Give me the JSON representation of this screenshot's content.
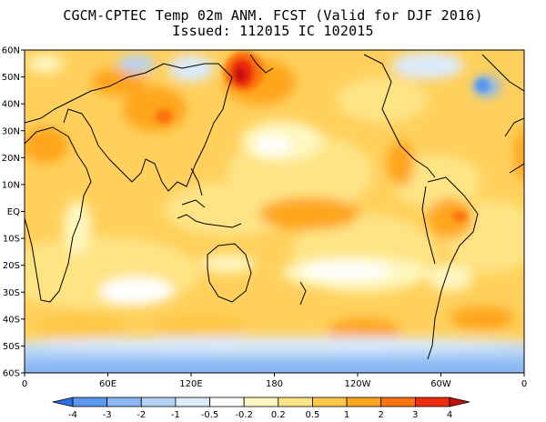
{
  "title": "CGCM-CPTEC Temp 02m ANM. FCST  (Valid for DJF 2016)",
  "subtitle": "Issued:  112015 IC 102015",
  "lat_ticks": [
    "60N",
    "50N",
    "40N",
    "30N",
    "20N",
    "10N",
    "EQ",
    "10S",
    "20S",
    "30S",
    "40S",
    "50S",
    "60S"
  ],
  "lon_ticks": [
    "0",
    "60E",
    "120E",
    "180",
    "120W",
    "60W",
    "0"
  ],
  "lat_range": [
    -60,
    60
  ],
  "lon_range": [
    0,
    360
  ],
  "legend": {
    "labels": [
      "-4",
      "-3",
      "-2",
      "-1",
      "-0.5",
      "-0.2",
      "0.2",
      "0.5",
      "1",
      "2",
      "3",
      "4"
    ],
    "colors": [
      "#2d6fe4",
      "#5b97ec",
      "#88b7f2",
      "#b4d3f7",
      "#dcebfb",
      "#ffffff",
      "#fff7bf",
      "#ffe485",
      "#ffc745",
      "#ffa51e",
      "#fb7411",
      "#ec2c0a",
      "#c4100a"
    ]
  },
  "colors": {
    "ocean_base": "#ffd05c",
    "land": "#ffc44c",
    "coast": "#000000"
  }
}
